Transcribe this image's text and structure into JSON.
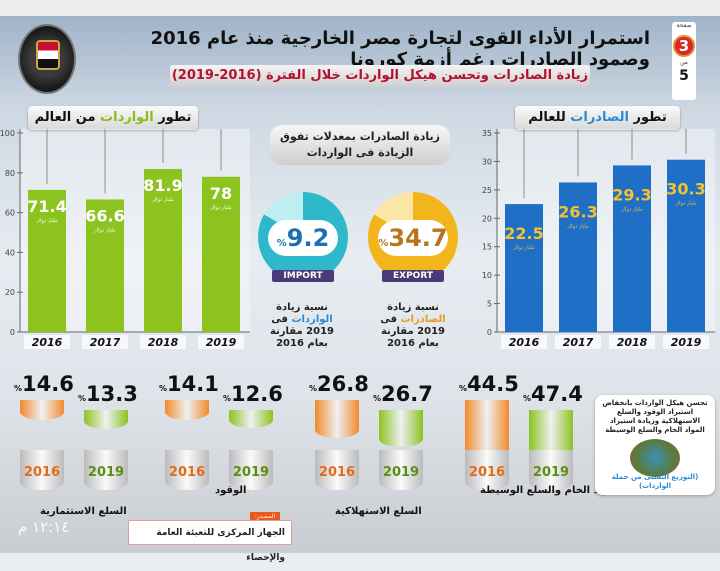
{
  "header": {
    "title": "استمرار الأداء القوى لتجارة مصر الخارجية منذ عام 2016 وصمود الصادرات رغم أزمة كورونا",
    "subtitle": "زيادة الصادرات وتحسن هيكل الواردات خلال الفترة (2016-2019)",
    "page_label": "صفحة",
    "page_current": "3",
    "page_of": "من",
    "page_total": "5"
  },
  "chart_data": [
    {
      "type": "bar",
      "title_parts": [
        "تطور ",
        "الواردات",
        " من العالم"
      ],
      "categories": [
        "2016",
        "2017",
        "2018",
        "2019"
      ],
      "values": [
        71.4,
        66.6,
        81.9,
        78
      ],
      "value_labels": [
        "71.4",
        "66.6",
        "81.9",
        "78"
      ],
      "unit": "مليار دولار",
      "ylim": [
        0,
        100
      ],
      "yticks": [
        0,
        20,
        40,
        60,
        80,
        100
      ],
      "color": "#8cc31f"
    },
    {
      "type": "bar",
      "title_parts": [
        "تطور ",
        "الصادرات",
        " للعالم"
      ],
      "categories": [
        "2016",
        "2017",
        "2018",
        "2019"
      ],
      "values": [
        22.5,
        26.3,
        29.3,
        30.3
      ],
      "value_labels": [
        "22.5",
        "26.3",
        "29.3",
        "30.3"
      ],
      "unit": "مليار دولار",
      "ylim": [
        0,
        35
      ],
      "yticks": [
        0,
        5,
        10,
        15,
        20,
        25,
        30,
        35
      ],
      "color": "#1f6fc6",
      "label_color": "#f2c230"
    }
  ],
  "center": {
    "heading": "زيادة الصادرات بمعدلات تفوق الزيادة فى الواردات",
    "import": {
      "value": "9.2",
      "pct": "%",
      "tag": "IMPORT",
      "note_pre": "نسبة زيادة ",
      "note_hl": "الواردات",
      "note_post": " فى 2019 مقارنة بعام 2016",
      "color": "#2fb8c9"
    },
    "export": {
      "value": "34.7",
      "pct": "%",
      "tag": "EXPORT",
      "note_pre": "نسبة زيادة ",
      "note_hl": "الصادرات",
      "note_post": " فى 2019 مقارنة بعام 2016",
      "color": "#f2b51c"
    }
  },
  "structure": {
    "years": [
      "2016",
      "2019"
    ],
    "pct": "%",
    "groups": [
      {
        "label": "المواد الخام والسلع الوسيطة",
        "v2016": "44.5",
        "v2019": "47.4"
      },
      {
        "label": "السلع الاستهلاكية",
        "v2016": "26.8",
        "v2019": "26.7"
      },
      {
        "label": "الوقود",
        "v2016": "14.1",
        "v2019": "12.6"
      },
      {
        "label": "السلع الاستثمارية",
        "v2016": "14.6",
        "v2019": "13.3"
      }
    ],
    "info": {
      "text": "تحسن هيكل الواردات بانخفاض استيراد الوقود والسلع الاستهلاكية وزيادة استيراد المواد الخام والسلع الوسيطة",
      "footer": "(التوزيع النسبى من جملة الواردات)"
    }
  },
  "source": {
    "label": "المصدر:",
    "text": "الجهاز المركزى للتعبئة العامة والإحصاء"
  },
  "clock": "١٢:١٤ م",
  "colors": {
    "orange": "#f08a2c",
    "green": "#8cc31f",
    "red": "#b3122a"
  }
}
